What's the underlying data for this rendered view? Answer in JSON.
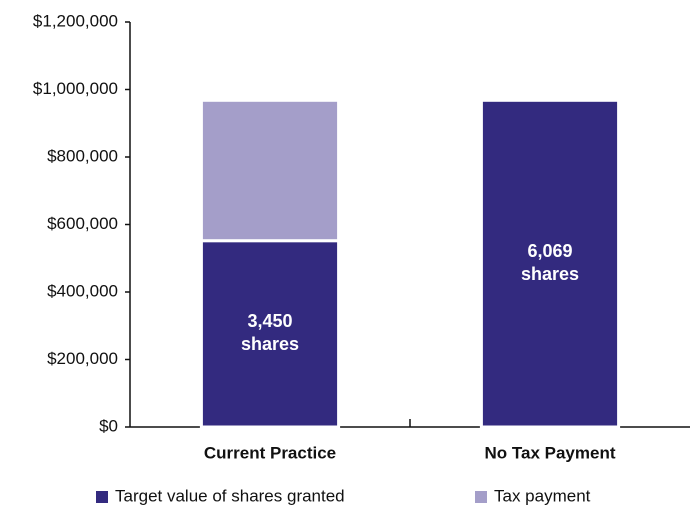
{
  "chart_data": {
    "type": "stacked_bar",
    "categories": [
      "Current Practice",
      "No Tax Payment"
    ],
    "series": [
      {
        "name": "Target value of shares granted",
        "color": "#332a7f",
        "values": [
          552000,
          968000
        ]
      },
      {
        "name": "Tax payment",
        "color": "#a49ec9",
        "values": [
          416000,
          0
        ]
      }
    ],
    "annotations": [
      {
        "series": 0,
        "category": 0,
        "lines": [
          "3,450",
          "shares"
        ]
      },
      {
        "series": 0,
        "category": 1,
        "lines": [
          "6,069",
          "shares"
        ]
      }
    ],
    "ylim": [
      0,
      1200000
    ],
    "yticks": [
      {
        "value": 0,
        "label": "$0"
      },
      {
        "value": 200000,
        "label": "$200,000"
      },
      {
        "value": 400000,
        "label": "$400,000"
      },
      {
        "value": 600000,
        "label": "$600,000"
      },
      {
        "value": 800000,
        "label": "$800,000"
      },
      {
        "value": 1000000,
        "label": "$1,000,000"
      },
      {
        "value": 1200000,
        "label": "$1,200,000"
      }
    ],
    "grid": false,
    "legend": "bottom"
  }
}
